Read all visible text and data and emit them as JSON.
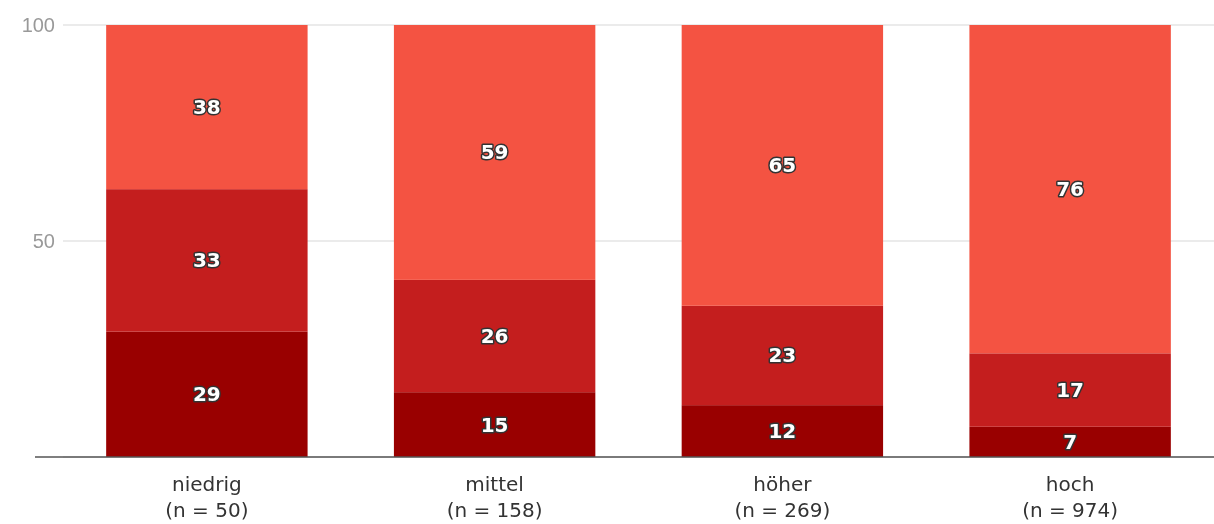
{
  "chart_data": {
    "type": "bar",
    "stacked": true,
    "categories": [
      "niedrig\n(n = 50)",
      "mittel\n(n = 158)",
      "höher\n(n = 269)",
      "hoch\n(n = 974)"
    ],
    "series": [
      {
        "color": "#990000",
        "values": [
          29,
          15,
          12,
          7
        ]
      },
      {
        "color": "#c41e1e",
        "values": [
          33,
          26,
          23,
          17
        ]
      },
      {
        "color": "#f45342",
        "values": [
          38,
          59,
          65,
          76
        ]
      }
    ],
    "ylim": [
      0,
      100
    ],
    "yticks": [
      {
        "value": 0,
        "label": null
      },
      50,
      100
    ],
    "grid": "y",
    "data_labels": true
  }
}
